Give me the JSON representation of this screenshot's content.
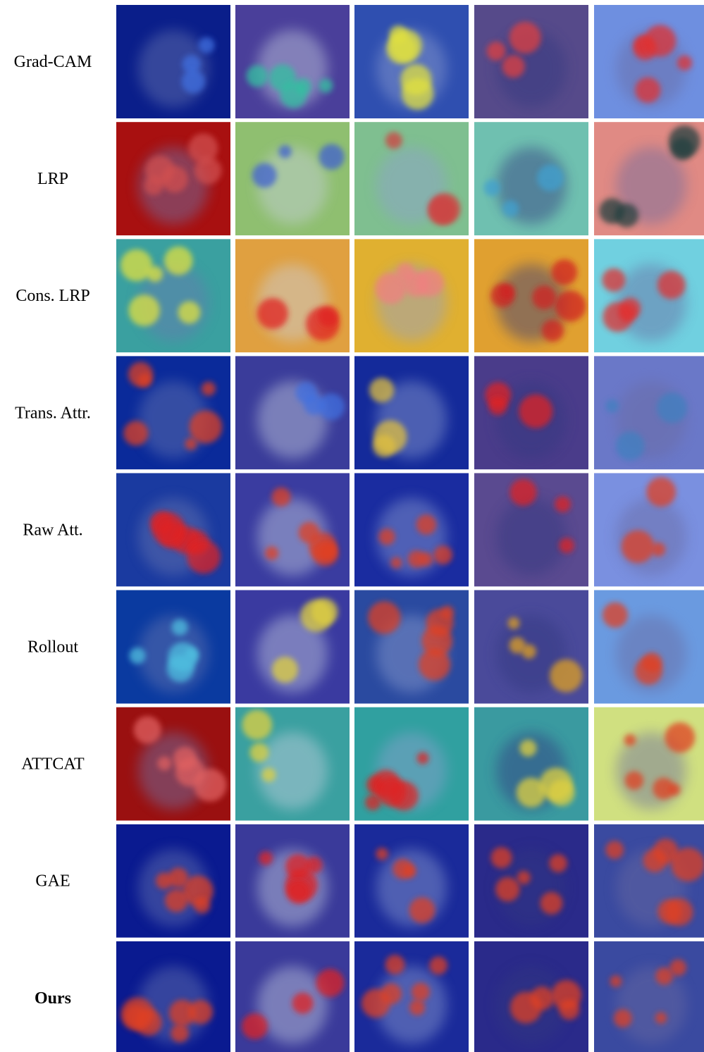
{
  "rows": [
    "Grad-CAM",
    "LRP",
    "Cons. LRP",
    "Trans. Attr.",
    "Raw Att.",
    "Rollout",
    "ATTCAT",
    "GAE",
    "Ours"
  ]
}
